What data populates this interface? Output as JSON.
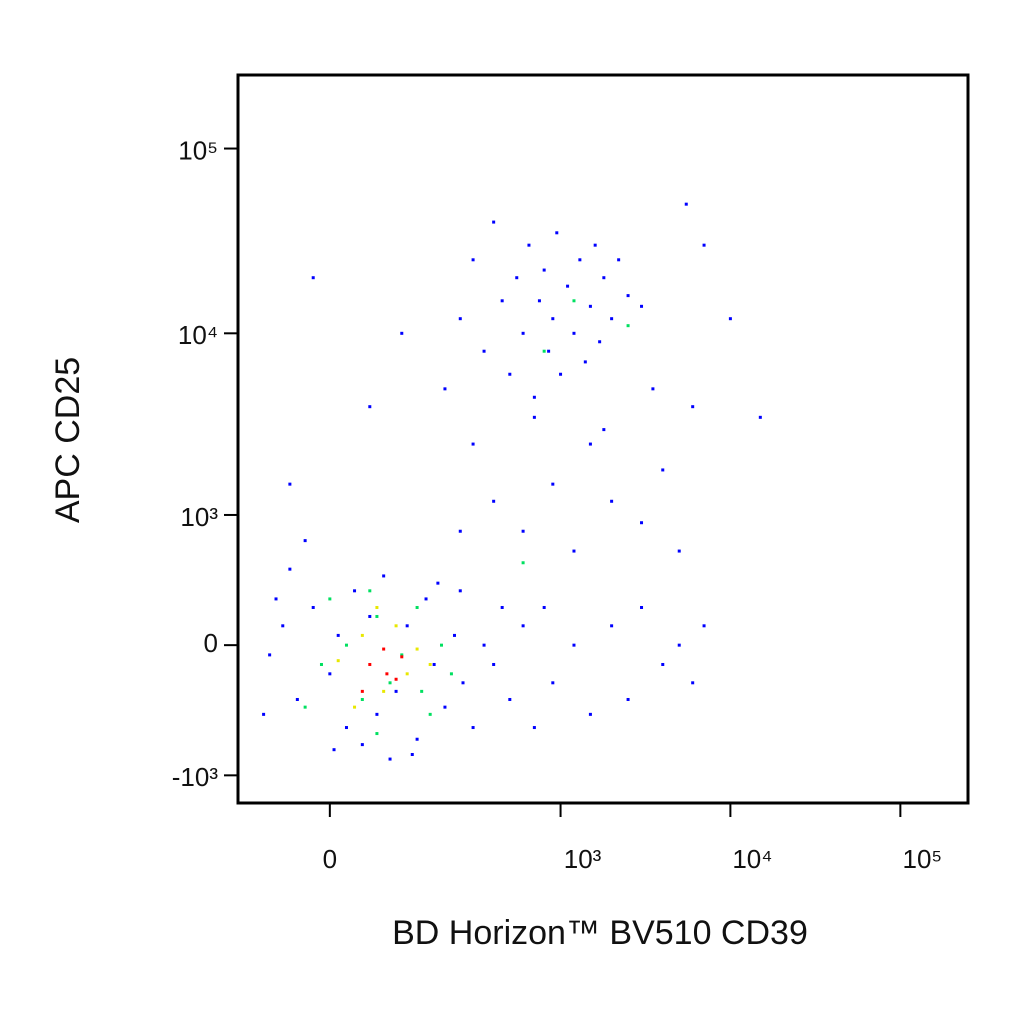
{
  "chart_data": {
    "type": "scatter",
    "xlabel": "BD Horizon™ BV510 CD39",
    "ylabel": "APC CD25",
    "xscale": "biexponential",
    "yscale": "biexponential",
    "xlim": [
      -140,
      250000
    ],
    "ylim": [
      -1440,
      250000
    ],
    "xticks": [
      0,
      {
        "value": 1000,
        "label": "10³"
      },
      {
        "value": 10000,
        "label": "10⁴"
      },
      {
        "value": 100000,
        "label": "10⁵"
      }
    ],
    "yticks": [
      {
        "value": -1000,
        "label": "-10³"
      },
      0,
      {
        "value": 1000,
        "label": "10³"
      },
      {
        "value": 10000,
        "label": "10⁴"
      },
      {
        "value": 100000,
        "label": "10⁵"
      }
    ],
    "series": [
      {
        "color": "#0000ff",
        "x": [
          -80,
          -60,
          -40,
          -20,
          0,
          10,
          20,
          30,
          40,
          50,
          60,
          70,
          90,
          110,
          130,
          150,
          170,
          200,
          230,
          260,
          300,
          350,
          -90,
          -70,
          5,
          120,
          180,
          250,
          400,
          450,
          -50,
          80,
          500,
          600,
          700,
          800,
          900,
          1200,
          1500,
          2000,
          2500,
          3000,
          4000,
          5000,
          6000,
          7000,
          600,
          900,
          1200,
          1500,
          2000,
          3000,
          4000,
          5000,
          400,
          300,
          250,
          700,
          1800,
          -50,
          -30,
          200,
          250,
          300,
          350,
          400,
          450,
          500,
          550,
          600,
          650,
          700,
          750,
          800,
          850,
          900,
          950,
          1000,
          1100,
          1200,
          1300,
          1400,
          1500,
          1600,
          1700,
          1800,
          2000,
          2200,
          2500,
          3000,
          5500,
          100,
          50,
          -20,
          7000,
          10000,
          15000,
          6000,
          3500
        ],
        "y": [
          -50,
          100,
          -300,
          200,
          -150,
          50,
          -500,
          300,
          -650,
          150,
          -400,
          400,
          -250,
          100,
          -600,
          250,
          -100,
          -350,
          50,
          -200,
          -500,
          0,
          -400,
          250,
          -700,
          -750,
          350,
          300,
          -100,
          200,
          450,
          -800,
          -300,
          100,
          -500,
          200,
          -200,
          0,
          -400,
          100,
          -300,
          200,
          -100,
          0,
          -200,
          100,
          800,
          1500,
          600,
          2500,
          1200,
          900,
          1800,
          600,
          1200,
          2500,
          800,
          3500,
          3000,
          1500,
          700,
          5000,
          12000,
          25000,
          8000,
          40000,
          15000,
          6000,
          20000,
          10000,
          30000,
          4500,
          15000,
          22000,
          8000,
          12000,
          35000,
          6000,
          18000,
          10000,
          25000,
          7000,
          14000,
          30000,
          9000,
          20000,
          12000,
          25000,
          16000,
          14000,
          50000,
          10000,
          4000,
          20000,
          30000,
          12000,
          3500,
          4000,
          5000
        ]
      },
      {
        "color": "#00e060",
        "x": [
          -10,
          20,
          40,
          60,
          80,
          100,
          130,
          160,
          190,
          220,
          0,
          -30,
          60,
          140,
          50,
          800,
          1200,
          2500,
          600
        ],
        "y": [
          -100,
          0,
          -300,
          150,
          -200,
          -50,
          200,
          -400,
          0,
          -150,
          250,
          -350,
          -550,
          -250,
          300,
          8000,
          15000,
          11000,
          500
        ]
      },
      {
        "color": "#e8e800",
        "x": [
          10,
          40,
          70,
          90,
          110,
          30,
          130,
          60,
          160
        ],
        "y": [
          -80,
          50,
          -250,
          100,
          -150,
          -350,
          -20,
          200,
          -100
        ]
      },
      {
        "color": "#ff0000",
        "x": [
          50,
          70,
          90,
          40,
          100,
          75
        ],
        "y": [
          -100,
          -20,
          -180,
          -250,
          -60,
          -150
        ]
      }
    ]
  }
}
